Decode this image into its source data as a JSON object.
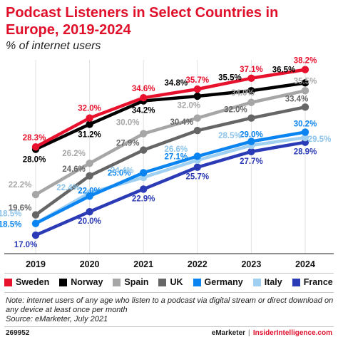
{
  "header": {
    "title": "Podcast Listeners in Select Countries in Europe, 2019-2024",
    "subtitle": "% of internet users"
  },
  "chart_data": {
    "type": "line",
    "title": "Podcast Listeners in Select Countries in Europe, 2019-2024",
    "subtitle": "% of internet users",
    "categories": [
      "2019",
      "2020",
      "2021",
      "2022",
      "2023",
      "2024"
    ],
    "ylim": [
      15,
      40
    ],
    "grid": false,
    "legend_placement": "bottom",
    "series": [
      {
        "name": "Sweden",
        "color": "#e8112d",
        "values": [
          28.3,
          32.0,
          34.6,
          35.7,
          37.1,
          38.2
        ],
        "labels": [
          "28.3%",
          "32.0%",
          "34.6%",
          "35.7%",
          "37.1%",
          "38.2%"
        ]
      },
      {
        "name": "Norway",
        "color": "#000000",
        "values": [
          28.0,
          31.2,
          34.2,
          34.8,
          35.5,
          36.5
        ],
        "labels": [
          "28.0%",
          "31.2%",
          "34.2%",
          "34.8%",
          "35.5%",
          "36.5%"
        ]
      },
      {
        "name": "Spain",
        "color": "#a6a6a6",
        "values": [
          22.2,
          26.2,
          30.0,
          32.0,
          34.0,
          35.5
        ],
        "labels": [
          "22.2%",
          "26.2%",
          "30.0%",
          "32.0%",
          "34.0%",
          "35.5%"
        ]
      },
      {
        "name": "UK",
        "color": "#666666",
        "values": [
          19.6,
          24.6,
          27.9,
          30.4,
          32.0,
          33.4
        ],
        "labels": [
          "19.6%",
          "24.6%",
          "27.9%",
          "30.4%",
          "32.0%",
          "33.4%"
        ]
      },
      {
        "name": "Germany",
        "color": "#0a84f0",
        "values": [
          18.5,
          22.0,
          25.0,
          27.1,
          29.0,
          30.2
        ],
        "labels": [
          "18.5%",
          "22.0%",
          "25.0%",
          "27.1%",
          "29.0%",
          "30.2%"
        ]
      },
      {
        "name": "Italy",
        "color": "#9fd0f2",
        "values": [
          18.5,
          22.4,
          24.4,
          26.6,
          28.5,
          29.5
        ],
        "labels": [
          "18.5%",
          "22.4%",
          "24.4%",
          "26.6%",
          "28.5%",
          "29.5%"
        ]
      },
      {
        "name": "France",
        "color": "#2b3bb5",
        "values": [
          17.0,
          20.0,
          22.9,
          25.7,
          27.7,
          28.9
        ],
        "labels": [
          "17.0%",
          "20.0%",
          "22.9%",
          "25.7%",
          "27.7%",
          "28.9%"
        ]
      }
    ]
  },
  "footer": {
    "note": "Note: internet users of any age who listen to a podcast via digital stream or direct download on any device at least once per month",
    "source": "Source: eMarketer, July 2021",
    "id": "269952",
    "brand": "eMarketer",
    "separator": "|",
    "brand2": "InsiderIntelligence.com"
  }
}
